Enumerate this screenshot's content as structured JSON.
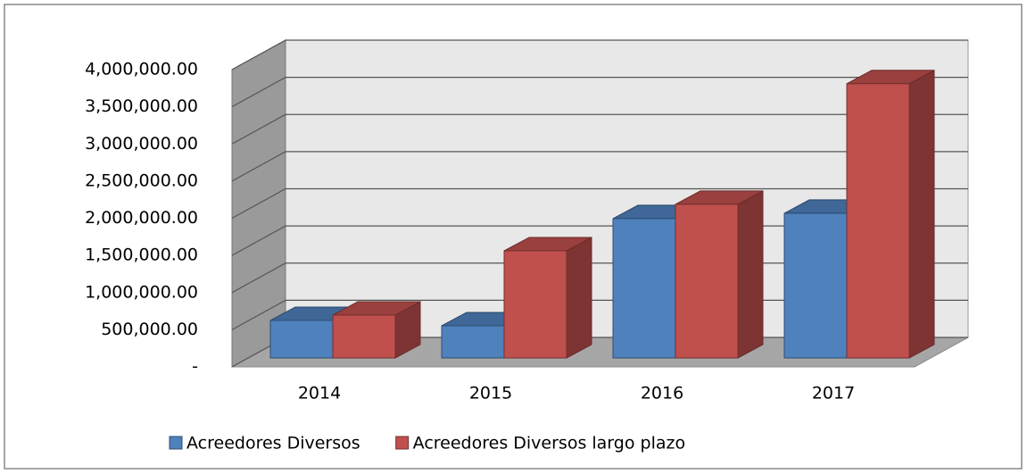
{
  "chart_data": {
    "type": "bar3d",
    "categories": [
      "2014",
      "2015",
      "2016",
      "2017"
    ],
    "series": [
      {
        "name": "Acreedores Diversos",
        "color": "#4f81bd",
        "values": [
          505000,
          433000,
          1875000,
          1947000
        ]
      },
      {
        "name": "Acreedores Diversos largo plazo",
        "color": "#c0504d",
        "values": [
          577000,
          1442000,
          2067000,
          3690000
        ]
      }
    ],
    "ylim": [
      0,
      4000000
    ],
    "yticks": [
      {
        "value": 0,
        "label": "-"
      },
      {
        "value": 500000,
        "label": "500,000.00"
      },
      {
        "value": 1000000,
        "label": "1,000,000.00"
      },
      {
        "value": 1500000,
        "label": "1,500,000.00"
      },
      {
        "value": 2000000,
        "label": "2,000,000.00"
      },
      {
        "value": 2500000,
        "label": "2,500,000.00"
      },
      {
        "value": 3000000,
        "label": "3,000,000.00"
      },
      {
        "value": 3500000,
        "label": "3,500,000.00"
      },
      {
        "value": 4000000,
        "label": "4,000,000.00"
      }
    ],
    "grid": true,
    "legend": "bottom"
  }
}
